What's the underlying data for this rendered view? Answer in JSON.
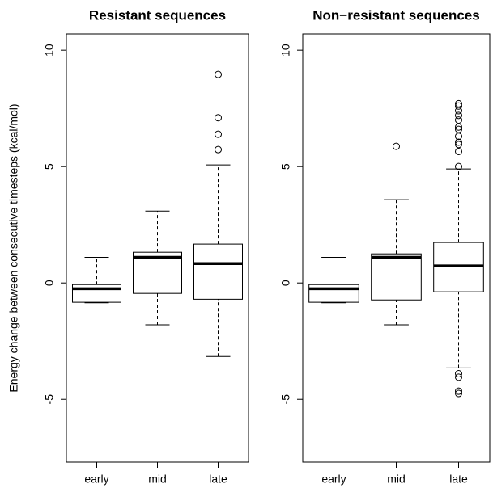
{
  "chart_data": [
    {
      "type": "box",
      "title": "Resistant sequences",
      "ylabel": "Energy change between consecutive timesteps (kcal/mol)",
      "categories": [
        "early",
        "mid",
        "late"
      ],
      "boxes": [
        {
          "whisker_low": -0.85,
          "q1": -0.83,
          "median": -0.25,
          "q3": -0.07,
          "whisker_high": 1.1,
          "outliers": []
        },
        {
          "whisker_low": -1.8,
          "q1": -0.45,
          "median": 1.1,
          "q3": 1.32,
          "whisker_high": 3.09,
          "outliers": []
        },
        {
          "whisker_low": -3.16,
          "q1": -0.7,
          "median": 0.83,
          "q3": 1.67,
          "whisker_high": 5.07,
          "outliers": [
            5.73,
            6.39,
            7.1,
            8.96
          ]
        }
      ],
      "ylim": [
        -7.7,
        10.7
      ],
      "yticks": [
        -5,
        0,
        5,
        10
      ]
    },
    {
      "type": "box",
      "title": "Non−resistant sequences",
      "categories": [
        "early",
        "mid",
        "late"
      ],
      "boxes": [
        {
          "whisker_low": -0.85,
          "q1": -0.83,
          "median": -0.25,
          "q3": -0.07,
          "whisker_high": 1.1,
          "outliers": []
        },
        {
          "whisker_low": -1.8,
          "q1": -0.73,
          "median": 1.1,
          "q3": 1.25,
          "whisker_high": 3.58,
          "outliers": [
            5.87
          ]
        },
        {
          "whisker_low": -3.65,
          "q1": -0.38,
          "median": 0.73,
          "q3": 1.74,
          "whisker_high": 4.9,
          "outliers": [
            -4.75,
            -4.65,
            -4.05,
            -3.9,
            5.0,
            5.65,
            5.95,
            6.05,
            6.3,
            6.6,
            6.7,
            7.0,
            7.2,
            7.4,
            7.6,
            7.7
          ]
        }
      ],
      "ylim": [
        -7.7,
        10.7
      ],
      "yticks": [
        -5,
        0,
        5,
        10
      ]
    }
  ]
}
